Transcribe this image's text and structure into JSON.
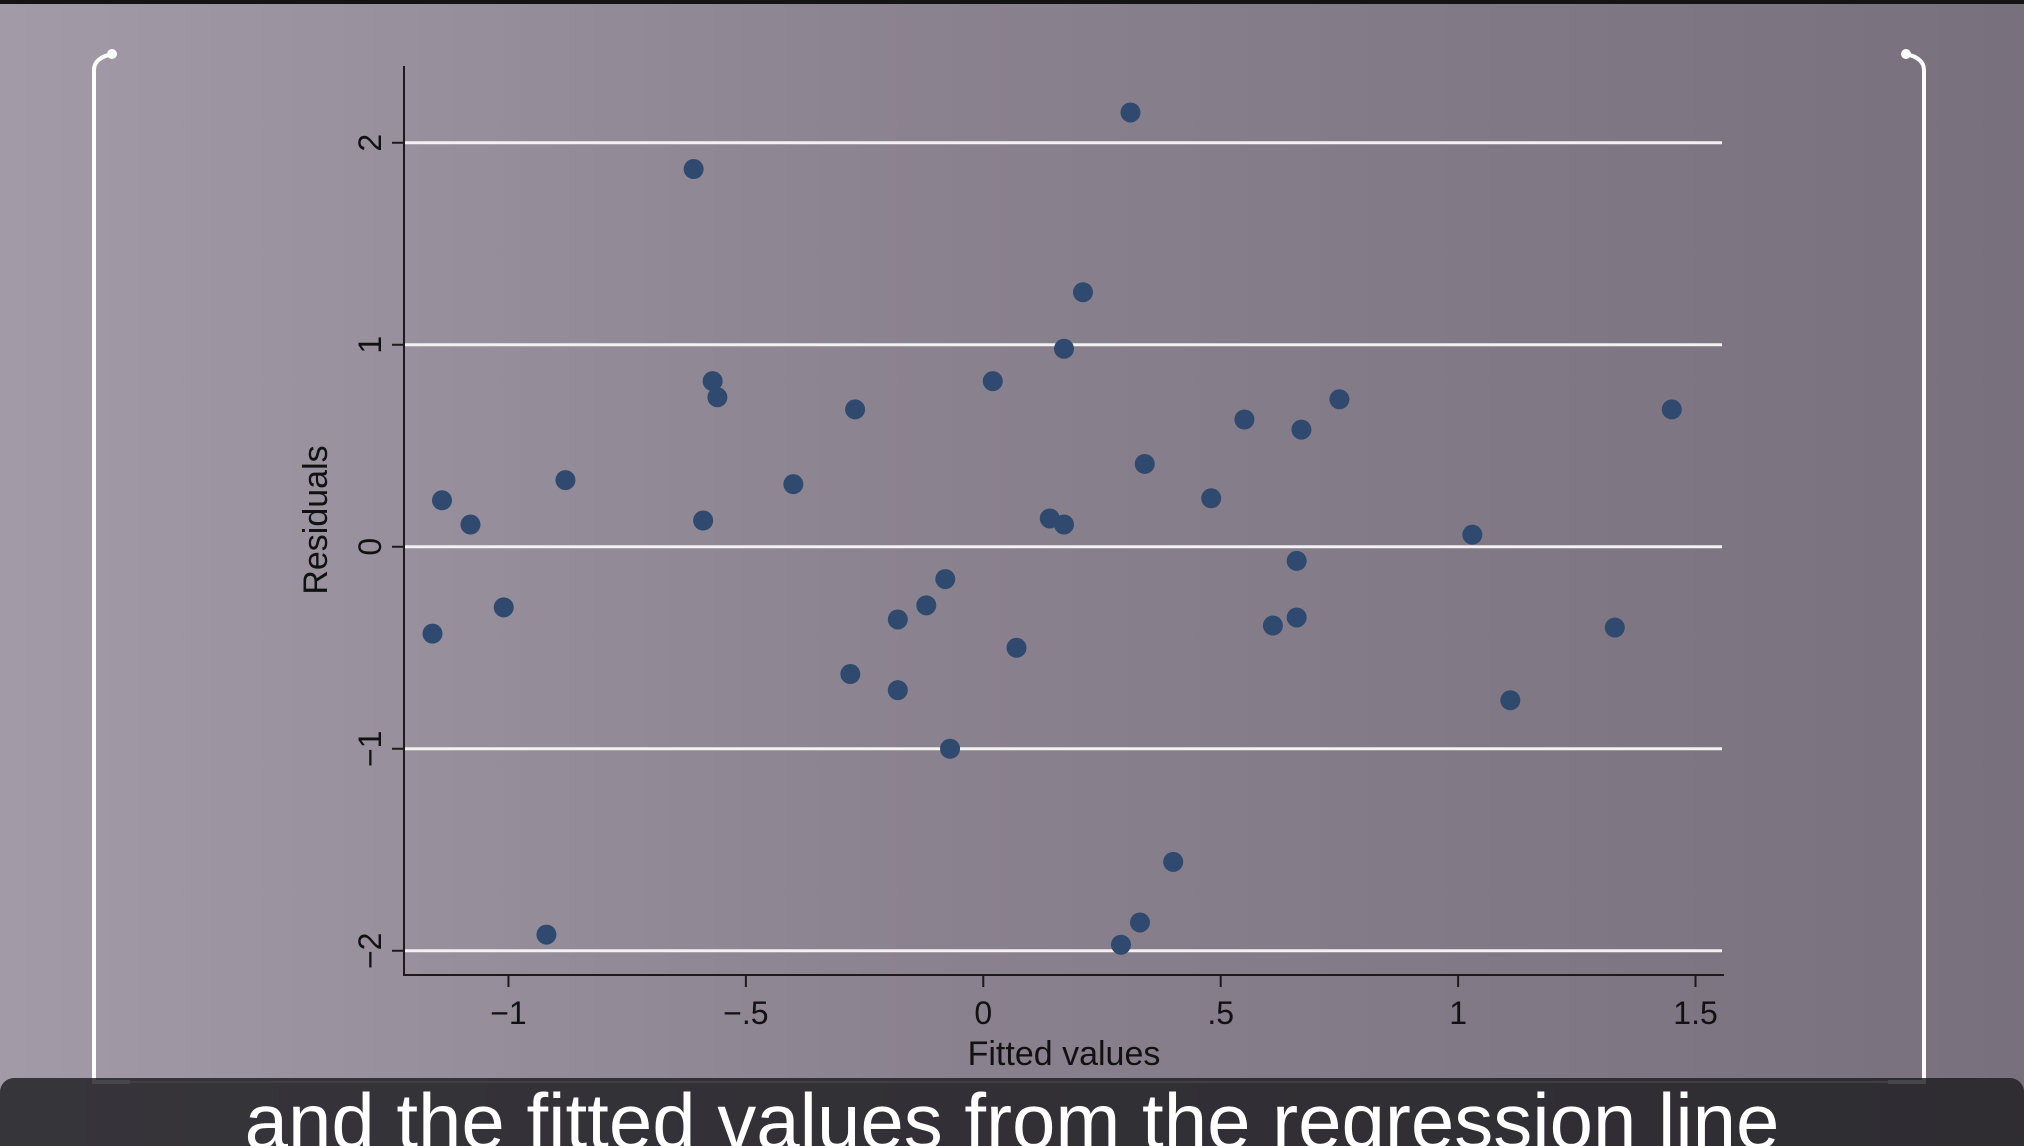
{
  "caption": "and the fitted values from the regression line",
  "colors": {
    "marker": "#2f4a6e",
    "gridline": "#f2f2f2",
    "axis": "#1b1b1b",
    "frame": "#ffffff",
    "background": "#8b828f"
  },
  "chart_data": {
    "type": "scatter",
    "xlabel": "Fitted values",
    "ylabel": "Residuals",
    "xlim": [
      -1.22,
      1.56
    ],
    "ylim": [
      -2.12,
      2.38
    ],
    "xticks": [
      -1,
      -0.5,
      0,
      0.5,
      1,
      1.5
    ],
    "xtick_labels": [
      "−1",
      "−.5",
      "0",
      ".5",
      "1",
      "1.5"
    ],
    "yticks": [
      -2,
      -1,
      0,
      1,
      2
    ],
    "ytick_labels": [
      "−2",
      "−1",
      "0",
      "1",
      "2"
    ],
    "grid": "horizontal",
    "legend": "none",
    "points": [
      {
        "x": 0.31,
        "y": 2.15
      },
      {
        "x": -0.61,
        "y": 1.87
      },
      {
        "x": 0.21,
        "y": 1.26
      },
      {
        "x": 0.17,
        "y": 0.98
      },
      {
        "x": -0.57,
        "y": 0.82
      },
      {
        "x": 0.02,
        "y": 0.82
      },
      {
        "x": -0.56,
        "y": 0.74
      },
      {
        "x": 0.75,
        "y": 0.73
      },
      {
        "x": -0.27,
        "y": 0.68
      },
      {
        "x": 1.45,
        "y": 0.68
      },
      {
        "x": 0.55,
        "y": 0.63
      },
      {
        "x": 0.67,
        "y": 0.58
      },
      {
        "x": 0.34,
        "y": 0.41
      },
      {
        "x": -0.88,
        "y": 0.33
      },
      {
        "x": -0.4,
        "y": 0.31
      },
      {
        "x": -1.14,
        "y": 0.23
      },
      {
        "x": 0.48,
        "y": 0.24
      },
      {
        "x": -0.59,
        "y": 0.13
      },
      {
        "x": 0.14,
        "y": 0.14
      },
      {
        "x": -1.08,
        "y": 0.11
      },
      {
        "x": 0.17,
        "y": 0.11
      },
      {
        "x": 1.03,
        "y": 0.06
      },
      {
        "x": 0.66,
        "y": -0.07
      },
      {
        "x": -0.08,
        "y": -0.16
      },
      {
        "x": -0.12,
        "y": -0.29
      },
      {
        "x": -1.01,
        "y": -0.3
      },
      {
        "x": -0.18,
        "y": -0.36
      },
      {
        "x": 0.66,
        "y": -0.35
      },
      {
        "x": 0.61,
        "y": -0.39
      },
      {
        "x": 1.33,
        "y": -0.4
      },
      {
        "x": -1.16,
        "y": -0.43
      },
      {
        "x": 0.07,
        "y": -0.5
      },
      {
        "x": -0.28,
        "y": -0.63
      },
      {
        "x": -0.18,
        "y": -0.71
      },
      {
        "x": 1.11,
        "y": -0.76
      },
      {
        "x": -0.07,
        "y": -1.0
      },
      {
        "x": 0.4,
        "y": -1.56
      },
      {
        "x": 0.33,
        "y": -1.86
      },
      {
        "x": -0.92,
        "y": -1.92
      },
      {
        "x": 0.29,
        "y": -1.97
      }
    ]
  }
}
